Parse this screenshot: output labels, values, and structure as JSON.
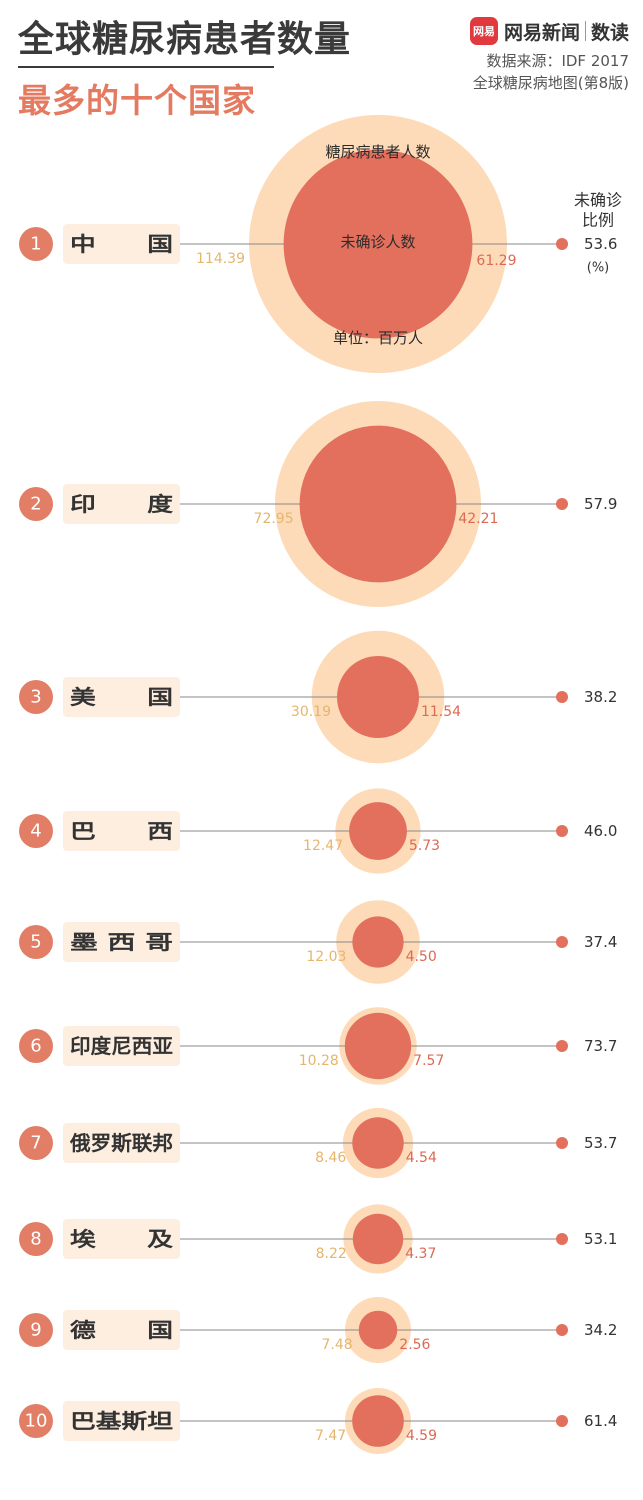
{
  "header": {
    "title": "全球糖尿病患者数量",
    "subtitle": "最多的十个国家",
    "brand_logo_text": "网易",
    "brand_name": "网易新闻",
    "brand_column": "数读",
    "source_line1": "数据来源：IDF 2017",
    "source_line2": "全球糖尿病地图(第8版)"
  },
  "legend": {
    "outer_label": "糖尿病患者人数",
    "inner_label": "未确诊人数",
    "unit_label": "单位：百万人",
    "ratio_header_1": "未确诊",
    "ratio_header_2": "比例",
    "ratio_unit": "(%)"
  },
  "colors": {
    "outer_circle": "#fddbb8",
    "inner_circle": "#e36f5d",
    "rank_badge": "#e27d66",
    "total_text": "#e6b56e",
    "undiagnosed_text": "#dc6a54",
    "line": "#8a8a8a"
  },
  "chart_data": {
    "type": "bubble",
    "title": "全球糖尿病患者数量最多的十个国家",
    "unit": "百万人",
    "ranks": [
      "1",
      "2",
      "3",
      "4",
      "5",
      "6",
      "7",
      "8",
      "9",
      "10"
    ],
    "categories": [
      "中　　国",
      "印　　度",
      "美　　国",
      "巴　　西",
      "墨 西 哥",
      "印度尼西亚",
      "俄罗斯联邦",
      "埃　　及",
      "德　　国",
      "巴基斯坦"
    ],
    "series": [
      {
        "name": "糖尿病患者人数",
        "values": [
          114.39,
          72.95,
          30.19,
          12.47,
          12.03,
          10.28,
          8.46,
          8.22,
          7.48,
          7.47
        ]
      },
      {
        "name": "未确诊人数",
        "values": [
          61.29,
          42.21,
          11.54,
          5.73,
          4.5,
          7.57,
          4.54,
          4.37,
          2.56,
          4.59
        ]
      },
      {
        "name": "未确诊比例",
        "values": [
          53.6,
          57.9,
          38.2,
          46.0,
          37.4,
          73.7,
          53.7,
          53.1,
          34.2,
          61.4
        ]
      }
    ],
    "ratio_labels": [
      "53.6",
      "57.9",
      "38.2",
      "46.0",
      "37.4",
      "73.7",
      "53.7",
      "53.1",
      "34.2",
      "61.4"
    ],
    "total_labels": [
      "114.39",
      "72.95",
      "30.19",
      "12.47",
      "12.03",
      "10.28",
      "8.46",
      "8.22",
      "7.48",
      "7.47"
    ],
    "undiagnosed_labels": [
      "61.29",
      "42.21",
      "11.54",
      "5.73",
      "4.50",
      "7.57",
      "4.54",
      "4.37",
      "2.56",
      "4.59"
    ]
  }
}
